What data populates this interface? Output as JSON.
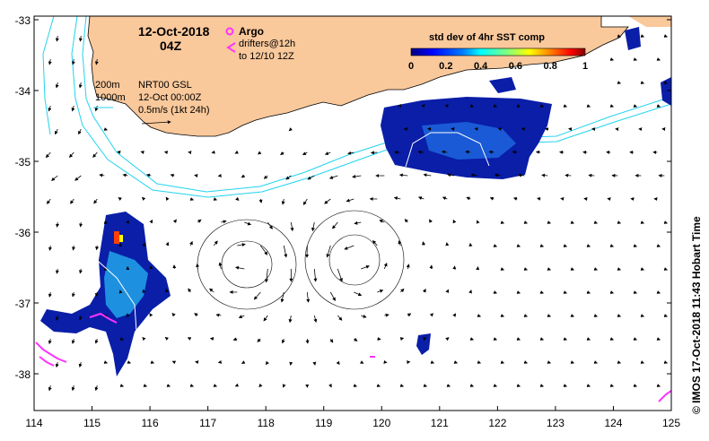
{
  "header": {
    "date": "12-Oct-2018",
    "time": "04Z"
  },
  "legend": {
    "argo_label": "Argo",
    "drifters_line1": "drifters@12h",
    "drifters_line2": "to 12/10 12Z",
    "argo_color": "#ff33ff",
    "drifter_color": "#ff33ff"
  },
  "bathymetry": {
    "label_200m": "200m",
    "label_1000m": "1000m",
    "contour_color": "#22d3ee"
  },
  "model_info": {
    "line1": "NRT00 GSL",
    "line2": "12-Oct 00:00Z",
    "line3": "0.5m/s (1kt 24h)"
  },
  "colorbar": {
    "title": "std dev of 4hr SST comp",
    "ticks": [
      "0",
      "0.2",
      "0.4",
      "0.6",
      "0.8",
      "1"
    ],
    "colors": [
      "#00007f",
      "#0000ff",
      "#0080ff",
      "#00ffff",
      "#80ff80",
      "#ffff00",
      "#ff8000",
      "#ff0000",
      "#7f0000"
    ]
  },
  "axes": {
    "x_ticks": [
      "114",
      "115",
      "116",
      "117",
      "118",
      "119",
      "120",
      "121",
      "122",
      "123",
      "124",
      "125"
    ],
    "y_ticks": [
      "-33",
      "-34",
      "-35",
      "-36",
      "-37",
      "-38"
    ]
  },
  "land_color": "#f9c89b",
  "credit": "© IMOS 17-Oct-2018 11:43 Hobart Time"
}
